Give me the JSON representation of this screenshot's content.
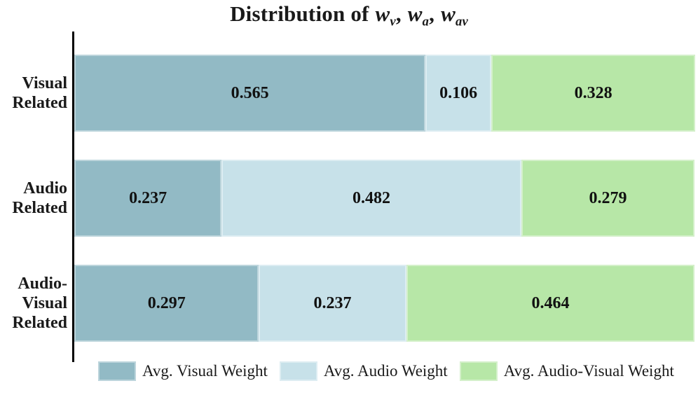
{
  "title": {
    "prefix": "Distribution of ",
    "terms": [
      {
        "base": "w",
        "sub": "v"
      },
      {
        "base": "w",
        "sub": "a"
      },
      {
        "base": "w",
        "sub": "av"
      }
    ],
    "separator": ", "
  },
  "chart_data": {
    "type": "bar",
    "orientation": "horizontal",
    "stacked": true,
    "normalized_to_total": 1.0,
    "title": "Distribution of w_v, w_a, w_av",
    "categories": [
      "Visual\nRelated",
      "Audio\nRelated",
      "Audio-\nVisual\nRelated"
    ],
    "series": [
      {
        "name": "Avg. Visual Weight",
        "color": "#92BAC5",
        "values": [
          0.565,
          0.237,
          0.297
        ],
        "labels": [
          "0.565",
          "0.237",
          "0.297"
        ]
      },
      {
        "name": "Avg. Audio Weight",
        "color": "#C7E1E9",
        "values": [
          0.106,
          0.482,
          0.237
        ],
        "labels": [
          "0.106",
          "0.482",
          "0.237"
        ]
      },
      {
        "name": "Avg. Audio-Visual Weight",
        "color": "#B7E7A7",
        "values": [
          0.328,
          0.279,
          0.464
        ],
        "labels": [
          "0.328",
          "0.279",
          "0.464"
        ]
      }
    ],
    "xlim": [
      0,
      1
    ],
    "grid": false,
    "y_axis_line": true,
    "legend_position": "bottom",
    "value_labels_shown": true
  }
}
